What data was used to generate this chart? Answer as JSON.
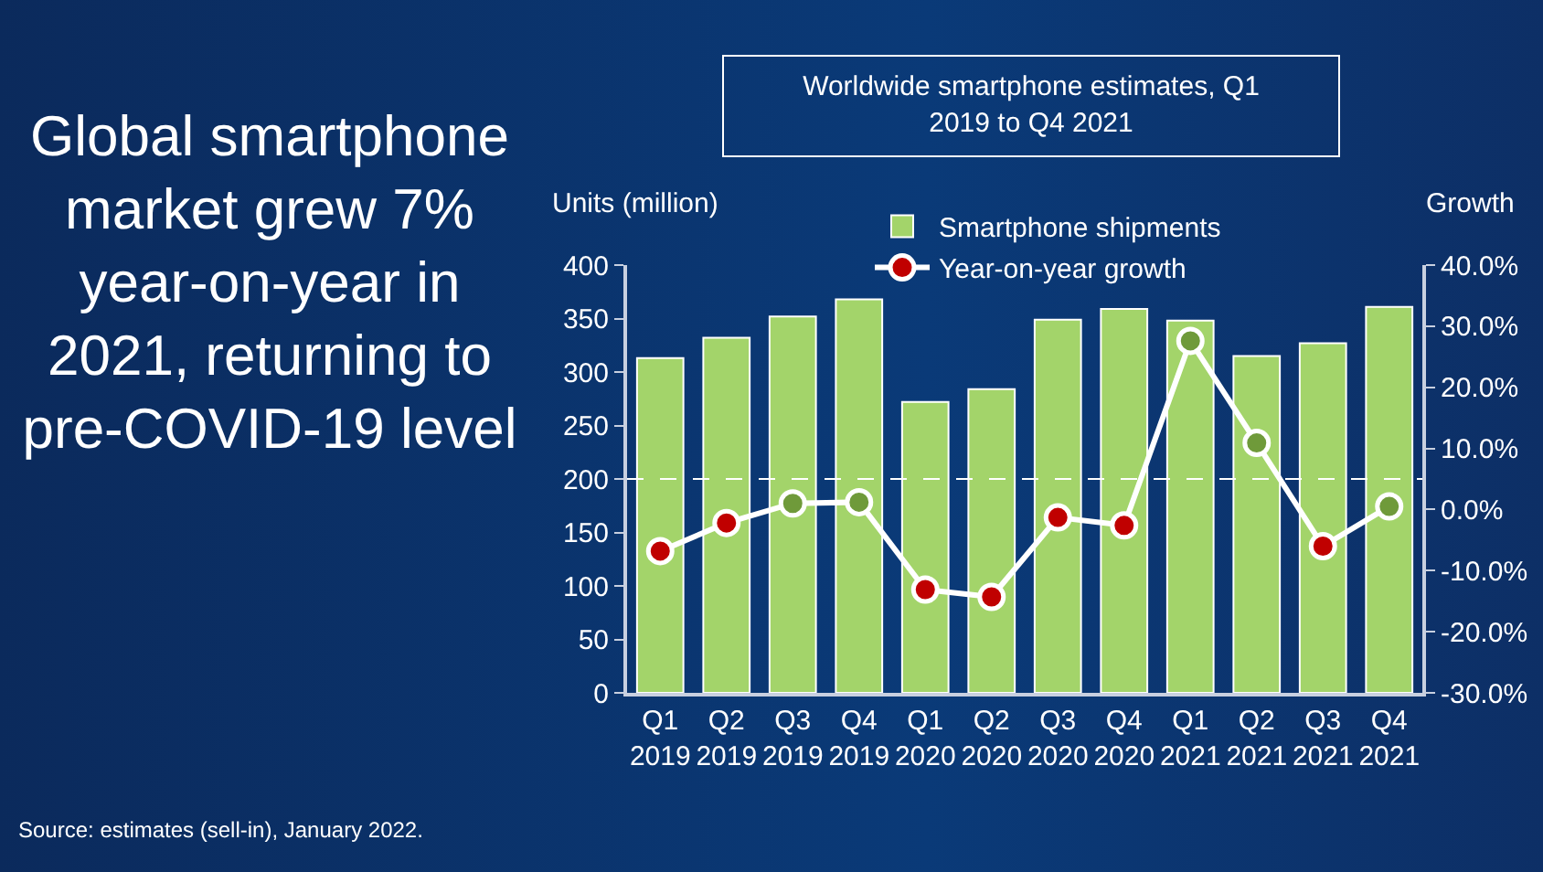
{
  "chart_data": {
    "type": "bar",
    "title": "Global smartphone market grew 7% year-on-year in 2021, returning to pre-COVID-19 level",
    "subtitle": "Worldwide smartphone estimates, Q1 2019 to Q4 2021",
    "ylabel": "Units (million)",
    "y2label": "Growth",
    "categories": [
      "Q1 2019",
      "Q2 2019",
      "Q3 2019",
      "Q4 2019",
      "Q1 2020",
      "Q2 2020",
      "Q3 2020",
      "Q4 2020",
      "Q1 2021",
      "Q2 2021",
      "Q3 2021",
      "Q4 2021"
    ],
    "series": [
      {
        "name": "Smartphone shipments",
        "color": "#a3d46a",
        "values": [
          313,
          332,
          352,
          368,
          272,
          284,
          349,
          359,
          348,
          315,
          327,
          361
        ]
      },
      {
        "name": "Year-on-year growth",
        "type": "line",
        "axis": "y2",
        "color": "#ffffff",
        "marker": "circle",
        "colors": [
          "#c00000",
          "#c00000",
          "#6f9a3a",
          "#6f9a3a",
          "#c00000",
          "#c00000",
          "#c00000",
          "#c00000",
          "#6f9a3a",
          "#6f9a3a",
          "#c00000",
          "#6f9a3a"
        ],
        "values": [
          -6.8,
          -2.2,
          1.0,
          1.2,
          -13.1,
          -14.3,
          -1.3,
          -2.6,
          27.6,
          10.9,
          -6.0,
          0.5
        ]
      }
    ],
    "ylim": [
      0,
      400
    ],
    "yticks": [
      0,
      50,
      100,
      150,
      200,
      250,
      300,
      350,
      400
    ],
    "y2lim": [
      -30,
      40
    ],
    "y2ticks": [
      {
        "value": -30,
        "label": "-30.0%"
      },
      {
        "value": -20,
        "label": "-20.0%"
      },
      {
        "value": -10,
        "label": "-10.0%"
      },
      {
        "value": 0,
        "label": "0.0%"
      },
      {
        "value": 10,
        "label": "10.0%"
      },
      {
        "value": 20,
        "label": "20.0%"
      },
      {
        "value": 30,
        "label": "30.0%"
      },
      {
        "value": 40,
        "label": "40.0%"
      }
    ],
    "ref_lines": [
      {
        "axis": "y",
        "value": 200,
        "color": "#ffffff",
        "line_style": "dashed"
      }
    ],
    "grid": false,
    "legend": "top",
    "annotations": [
      "Source: estimates (sell-in), January 2022."
    ]
  }
}
